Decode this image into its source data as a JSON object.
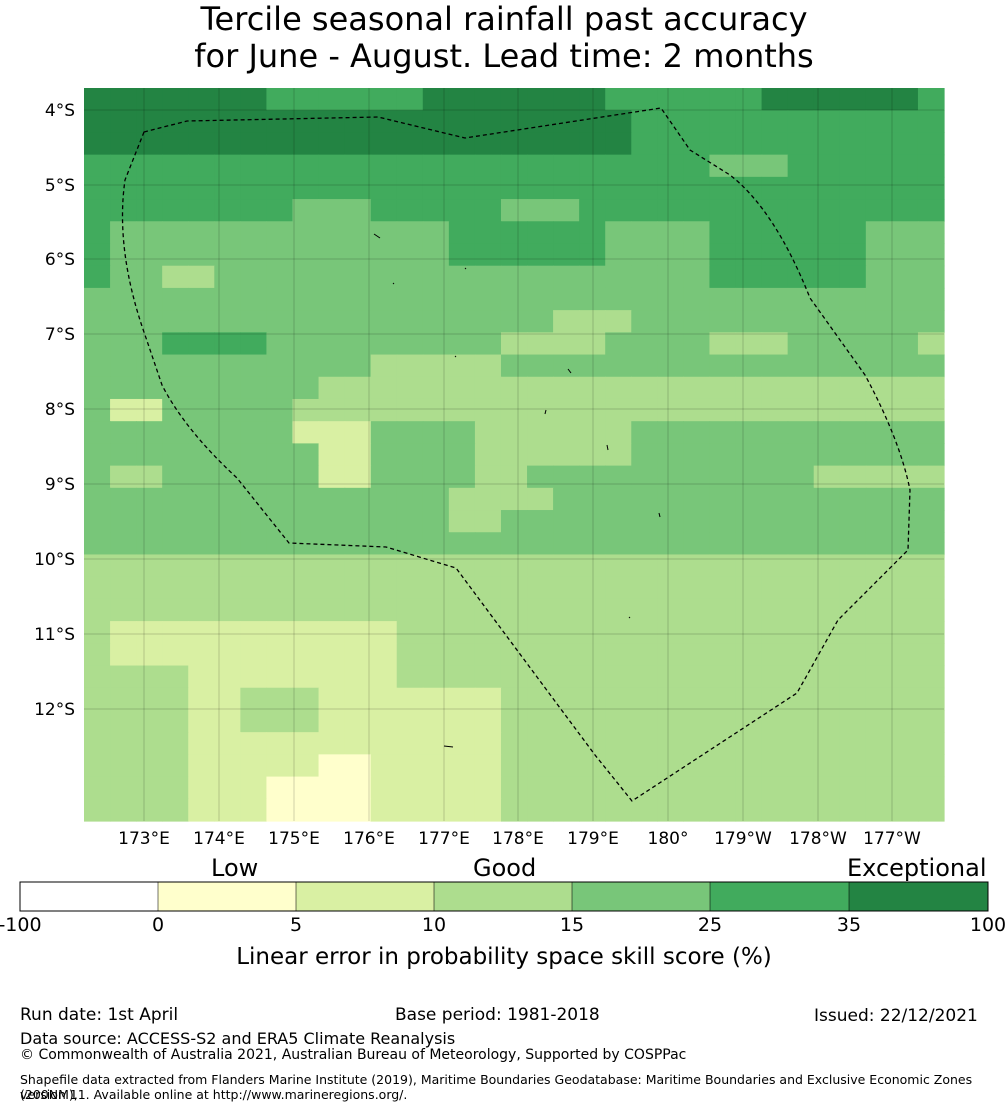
{
  "title": {
    "line1": "Tercile seasonal rainfall past accuracy",
    "line2": "for June - August. Lead time: 2 months"
  },
  "map": {
    "lat_labels": [
      "4°S",
      "5°S",
      "6°S",
      "7°S",
      "8°S",
      "9°S",
      "10°S",
      "11°S",
      "12°S"
    ],
    "lon_labels": [
      "173°E",
      "174°E",
      "175°E",
      "176°E",
      "177°E",
      "178°E",
      "179°E",
      "180°",
      "179°W",
      "178°W",
      "177°W"
    ],
    "grid_values": [
      [
        5,
        5,
        5,
        5,
        5,
        5,
        5,
        4,
        4,
        4,
        4,
        4,
        4,
        5,
        5,
        5,
        5,
        5,
        5,
        5,
        4,
        4,
        4,
        4,
        4,
        4,
        5,
        5,
        5,
        5,
        5,
        5,
        4
      ],
      [
        5,
        5,
        5,
        5,
        5,
        5,
        5,
        5,
        5,
        5,
        5,
        5,
        5,
        5,
        5,
        5,
        5,
        5,
        5,
        5,
        5,
        4,
        4,
        4,
        4,
        4,
        4,
        4,
        4,
        4,
        4,
        4,
        4
      ],
      [
        5,
        5,
        5,
        5,
        5,
        5,
        5,
        5,
        5,
        5,
        5,
        5,
        5,
        5,
        5,
        5,
        5,
        5,
        5,
        5,
        5,
        4,
        4,
        4,
        4,
        4,
        4,
        4,
        4,
        4,
        4,
        4,
        4
      ],
      [
        4,
        4,
        4,
        4,
        4,
        4,
        4,
        4,
        4,
        4,
        4,
        4,
        4,
        4,
        4,
        4,
        4,
        4,
        4,
        4,
        4,
        4,
        4,
        4,
        3,
        3,
        3,
        4,
        4,
        4,
        4,
        4,
        4
      ],
      [
        4,
        4,
        4,
        4,
        4,
        4,
        4,
        4,
        4,
        4,
        4,
        4,
        4,
        4,
        4,
        4,
        4,
        4,
        4,
        4,
        4,
        4,
        4,
        4,
        4,
        4,
        4,
        4,
        4,
        4,
        4,
        4,
        4
      ],
      [
        4,
        4,
        4,
        4,
        4,
        4,
        4,
        4,
        3,
        3,
        3,
        4,
        4,
        4,
        4,
        4,
        3,
        3,
        3,
        4,
        4,
        4,
        4,
        4,
        4,
        4,
        4,
        4,
        4,
        4,
        4,
        4,
        4
      ],
      [
        4,
        3,
        3,
        3,
        3,
        3,
        3,
        3,
        3,
        3,
        3,
        3,
        3,
        3,
        4,
        4,
        4,
        4,
        4,
        4,
        3,
        3,
        3,
        3,
        4,
        4,
        4,
        4,
        4,
        4,
        3,
        3,
        3
      ],
      [
        4,
        3,
        3,
        3,
        3,
        3,
        3,
        3,
        3,
        3,
        3,
        3,
        3,
        3,
        4,
        4,
        4,
        4,
        4,
        4,
        3,
        3,
        3,
        3,
        4,
        4,
        4,
        4,
        4,
        4,
        3,
        3,
        3
      ],
      [
        4,
        3,
        3,
        2,
        2,
        3,
        3,
        3,
        3,
        3,
        3,
        3,
        3,
        3,
        3,
        3,
        3,
        3,
        3,
        3,
        3,
        3,
        3,
        3,
        4,
        4,
        4,
        4,
        4,
        4,
        3,
        3,
        3
      ],
      [
        3,
        3,
        3,
        3,
        3,
        3,
        3,
        3,
        3,
        3,
        3,
        3,
        3,
        3,
        3,
        3,
        3,
        3,
        3,
        3,
        3,
        3,
        3,
        3,
        3,
        3,
        3,
        3,
        3,
        3,
        3,
        3,
        3
      ],
      [
        3,
        3,
        3,
        3,
        3,
        3,
        3,
        3,
        3,
        3,
        3,
        3,
        3,
        3,
        3,
        3,
        3,
        3,
        2,
        2,
        2,
        3,
        3,
        3,
        3,
        3,
        3,
        3,
        3,
        3,
        3,
        3,
        3
      ],
      [
        3,
        3,
        3,
        4,
        4,
        4,
        4,
        3,
        3,
        3,
        3,
        3,
        3,
        3,
        3,
        3,
        2,
        2,
        2,
        2,
        3,
        3,
        3,
        3,
        2,
        2,
        2,
        3,
        3,
        3,
        3,
        3,
        2
      ],
      [
        3,
        3,
        3,
        3,
        3,
        3,
        3,
        3,
        3,
        3,
        3,
        2,
        2,
        2,
        2,
        2,
        3,
        3,
        3,
        3,
        3,
        3,
        3,
        3,
        3,
        3,
        3,
        3,
        3,
        3,
        3,
        3,
        3
      ],
      [
        3,
        3,
        3,
        3,
        3,
        3,
        3,
        3,
        3,
        2,
        2,
        2,
        2,
        2,
        2,
        2,
        2,
        2,
        2,
        2,
        2,
        2,
        2,
        2,
        2,
        2,
        2,
        2,
        2,
        2,
        2,
        2,
        2
      ],
      [
        3,
        1,
        1,
        3,
        3,
        3,
        3,
        3,
        2,
        2,
        2,
        2,
        2,
        2,
        2,
        2,
        2,
        2,
        2,
        2,
        2,
        2,
        2,
        2,
        2,
        2,
        2,
        2,
        2,
        2,
        2,
        2,
        2
      ],
      [
        3,
        3,
        3,
        3,
        3,
        3,
        3,
        3,
        1,
        1,
        1,
        3,
        3,
        3,
        3,
        2,
        2,
        2,
        2,
        2,
        2,
        3,
        3,
        3,
        3,
        3,
        3,
        3,
        3,
        3,
        3,
        3,
        3
      ],
      [
        3,
        3,
        3,
        3,
        3,
        3,
        3,
        3,
        3,
        1,
        1,
        3,
        3,
        3,
        3,
        2,
        2,
        2,
        2,
        2,
        2,
        3,
        3,
        3,
        3,
        3,
        3,
        3,
        3,
        3,
        3,
        3,
        3
      ],
      [
        3,
        2,
        2,
        3,
        3,
        3,
        3,
        3,
        3,
        1,
        1,
        3,
        3,
        3,
        3,
        2,
        2,
        3,
        3,
        3,
        3,
        3,
        3,
        3,
        3,
        3,
        3,
        3,
        2,
        2,
        2,
        2,
        2
      ],
      [
        3,
        3,
        3,
        3,
        3,
        3,
        3,
        3,
        3,
        3,
        3,
        3,
        3,
        3,
        2,
        2,
        2,
        2,
        3,
        3,
        3,
        3,
        3,
        3,
        3,
        3,
        3,
        3,
        3,
        3,
        3,
        3,
        3
      ],
      [
        3,
        3,
        3,
        3,
        3,
        3,
        3,
        3,
        3,
        3,
        3,
        3,
        3,
        3,
        2,
        2,
        3,
        3,
        3,
        3,
        3,
        3,
        3,
        3,
        3,
        3,
        3,
        3,
        3,
        3,
        3,
        3,
        3
      ],
      [
        3,
        3,
        3,
        3,
        3,
        3,
        3,
        3,
        3,
        3,
        3,
        3,
        3,
        3,
        3,
        3,
        3,
        3,
        3,
        3,
        3,
        3,
        3,
        3,
        3,
        3,
        3,
        3,
        3,
        3,
        3,
        3,
        3
      ],
      [
        2,
        2,
        2,
        2,
        2,
        2,
        2,
        2,
        2,
        2,
        2,
        2,
        2,
        2,
        2,
        2,
        2,
        2,
        2,
        2,
        2,
        2,
        2,
        2,
        2,
        2,
        2,
        2,
        2,
        2,
        2,
        2,
        2
      ],
      [
        2,
        2,
        2,
        2,
        2,
        2,
        2,
        2,
        2,
        2,
        2,
        2,
        2,
        2,
        2,
        2,
        2,
        2,
        2,
        2,
        2,
        2,
        2,
        2,
        2,
        2,
        2,
        2,
        2,
        2,
        2,
        2,
        2
      ],
      [
        2,
        2,
        2,
        2,
        2,
        2,
        2,
        2,
        2,
        2,
        2,
        2,
        2,
        2,
        2,
        2,
        2,
        2,
        2,
        2,
        2,
        2,
        2,
        2,
        2,
        2,
        2,
        2,
        2,
        2,
        2,
        2,
        2
      ],
      [
        2,
        1,
        1,
        1,
        1,
        1,
        1,
        1,
        1,
        1,
        1,
        1,
        2,
        2,
        2,
        2,
        2,
        2,
        2,
        2,
        2,
        2,
        2,
        2,
        2,
        2,
        2,
        2,
        2,
        2,
        2,
        2,
        2
      ],
      [
        2,
        1,
        1,
        1,
        1,
        1,
        1,
        1,
        1,
        1,
        1,
        1,
        2,
        2,
        2,
        2,
        2,
        2,
        2,
        2,
        2,
        2,
        2,
        2,
        2,
        2,
        2,
        2,
        2,
        2,
        2,
        2,
        2
      ],
      [
        2,
        2,
        2,
        2,
        1,
        1,
        1,
        1,
        1,
        1,
        1,
        1,
        2,
        2,
        2,
        2,
        2,
        2,
        2,
        2,
        2,
        2,
        2,
        2,
        2,
        2,
        2,
        2,
        2,
        2,
        2,
        2,
        2
      ],
      [
        2,
        2,
        2,
        2,
        1,
        1,
        2,
        2,
        2,
        1,
        1,
        1,
        1,
        1,
        1,
        1,
        2,
        2,
        2,
        2,
        2,
        2,
        2,
        2,
        2,
        2,
        2,
        2,
        2,
        2,
        2,
        2,
        2
      ],
      [
        2,
        2,
        2,
        2,
        1,
        1,
        2,
        2,
        2,
        1,
        1,
        1,
        1,
        1,
        1,
        1,
        2,
        2,
        2,
        2,
        2,
        2,
        2,
        2,
        2,
        2,
        2,
        2,
        2,
        2,
        2,
        2,
        2
      ],
      [
        2,
        2,
        2,
        2,
        1,
        1,
        1,
        1,
        1,
        1,
        1,
        1,
        1,
        1,
        1,
        1,
        2,
        2,
        2,
        2,
        2,
        2,
        2,
        2,
        2,
        2,
        2,
        2,
        2,
        2,
        2,
        2,
        2
      ],
      [
        2,
        2,
        2,
        2,
        1,
        1,
        1,
        1,
        1,
        0,
        0,
        1,
        1,
        1,
        1,
        1,
        2,
        2,
        2,
        2,
        2,
        2,
        2,
        2,
        2,
        2,
        2,
        2,
        2,
        2,
        2,
        2,
        2
      ],
      [
        2,
        2,
        2,
        2,
        1,
        1,
        1,
        0,
        0,
        0,
        0,
        1,
        1,
        1,
        1,
        1,
        2,
        2,
        2,
        2,
        2,
        2,
        2,
        2,
        2,
        2,
        2,
        2,
        2,
        2,
        2,
        2,
        2
      ],
      [
        2,
        2,
        2,
        2,
        1,
        1,
        1,
        0,
        0,
        0,
        0,
        1,
        1,
        1,
        1,
        1,
        2,
        2,
        2,
        2,
        2,
        2,
        2,
        2,
        2,
        2,
        2,
        2,
        2,
        2,
        2,
        2,
        2
      ]
    ],
    "boundary_style": "dashed black (EEZ)"
  },
  "colorbar": {
    "words": [
      "Low",
      "Good",
      "Exceptional"
    ],
    "ticks": [
      "-100",
      "0",
      "5",
      "10",
      "15",
      "25",
      "35",
      "100"
    ],
    "colors": [
      "#ffffff",
      "#ffffcc",
      "#d9f0a3",
      "#addd8e",
      "#78c679",
      "#41ab5d",
      "#238443"
    ],
    "label": "Linear error in probability space skill score (%)"
  },
  "footer": {
    "run_date": "Run date: 1st April",
    "base_period": "Base period: 1981-2018",
    "issued": "Issued: 22/12/2021",
    "data_source": "Data source: ACCESS-S2 and ERA5 Climate Reanalysis",
    "copyright": "© Commonwealth of Australia 2021, Australian Bureau of Meteorology, Supported by COSPPac",
    "shapefile_line1": "Shapefile data extracted from Flanders Marine Institute (2019), Maritime Boundaries Geodatabase: Maritime Boundaries and Exclusive Economic Zones (200NM),",
    "shapefile_line2": "version 11. Available online at http://www.marineregions.org/."
  }
}
